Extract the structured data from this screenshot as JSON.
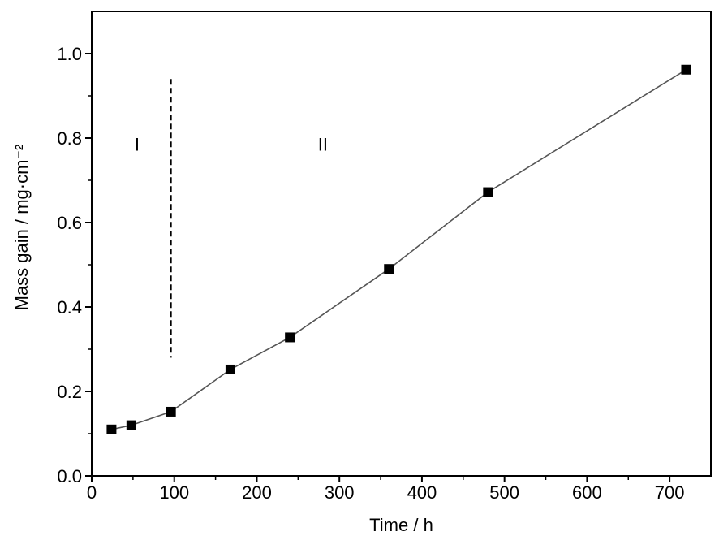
{
  "chart_data": {
    "type": "line",
    "xlabel": "Time / h",
    "ylabel": "Mass gain / mg·cm⁻²",
    "xlim": [
      0,
      750
    ],
    "ylim": [
      0,
      1.1
    ],
    "xticks": [
      0,
      100,
      200,
      300,
      400,
      500,
      600,
      700
    ],
    "yticks": [
      0.0,
      0.2,
      0.4,
      0.6,
      0.8,
      1.0
    ],
    "xtick_labels": [
      "0",
      "100",
      "200",
      "300",
      "400",
      "500",
      "600",
      "700"
    ],
    "ytick_labels": [
      "0.0",
      "0.2",
      "0.4",
      "0.6",
      "0.8",
      "1.0"
    ],
    "series": [
      {
        "x": [
          24,
          48,
          96,
          168,
          240,
          360,
          480,
          720
        ],
        "y": [
          0.11,
          0.12,
          0.152,
          0.252,
          0.328,
          0.49,
          0.672,
          0.962
        ],
        "marker": "square",
        "color": "#000000",
        "line_color": "#555555"
      }
    ],
    "divider": {
      "x": 96,
      "y_range": [
        0.28,
        0.94
      ],
      "style": "dashed"
    },
    "annotations": [
      {
        "text": "I",
        "x": 55,
        "y": 0.77
      },
      {
        "text": "II",
        "x": 280,
        "y": 0.77
      }
    ],
    "grid": false,
    "legend": "none"
  }
}
